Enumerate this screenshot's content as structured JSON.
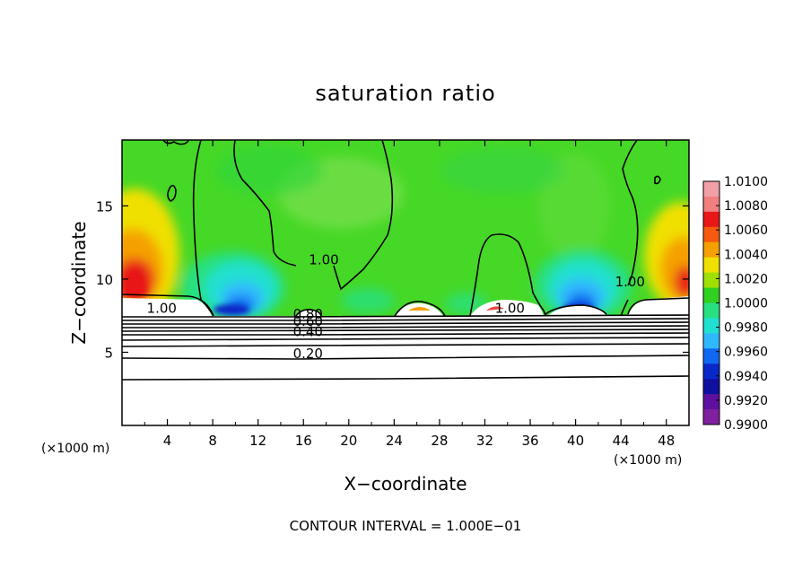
{
  "chart_data": {
    "type": "heatmap",
    "title": "saturation ratio",
    "xlabel": "X−coordinate",
    "ylabel": "Z−coordinate",
    "x_unit": "(×1000 m)",
    "y_unit": "(×1000 m)",
    "xlim": [
      0,
      50
    ],
    "ylim": [
      0,
      19.5
    ],
    "x_ticks": [
      "4",
      "8",
      "12",
      "16",
      "20",
      "24",
      "28",
      "32",
      "36",
      "40",
      "44",
      "48"
    ],
    "y_ticks": [
      "5",
      "10",
      "15"
    ],
    "footnote": "CONTOUR INTERVAL = 1.000E−01",
    "colorbar": {
      "labels": [
        "1.0100",
        "1.0080",
        "1.0060",
        "1.0040",
        "1.0020",
        "1.0000",
        "0.9980",
        "0.9960",
        "0.9940",
        "0.9920",
        "0.9900"
      ],
      "colors": [
        "#f2a0a8",
        "#f08080",
        "#e81818",
        "#f55a10",
        "#f5a000",
        "#f0e000",
        "#a0e000",
        "#30d020",
        "#28e080",
        "#20e0d0",
        "#30b8ff",
        "#1068f0",
        "#0828c8",
        "#1010a0",
        "#6010a0",
        "#8020a0"
      ]
    },
    "contour_labels": [
      {
        "text": "1.00",
        "x": 17.8,
        "z": 11.0
      },
      {
        "text": "1.00",
        "x": 3.5,
        "z": 7.7
      },
      {
        "text": "1.00",
        "x": 34.2,
        "z": 7.7
      },
      {
        "text": "1.00",
        "x": 44.8,
        "z": 9.5
      },
      {
        "text": "0.80",
        "x": 16.4,
        "z": 7.3
      },
      {
        "text": "0.60",
        "x": 16.4,
        "z": 6.8
      },
      {
        "text": "0.40",
        "x": 16.4,
        "z": 6.1
      },
      {
        "text": "0.20",
        "x": 16.4,
        "z": 4.6
      }
    ]
  }
}
